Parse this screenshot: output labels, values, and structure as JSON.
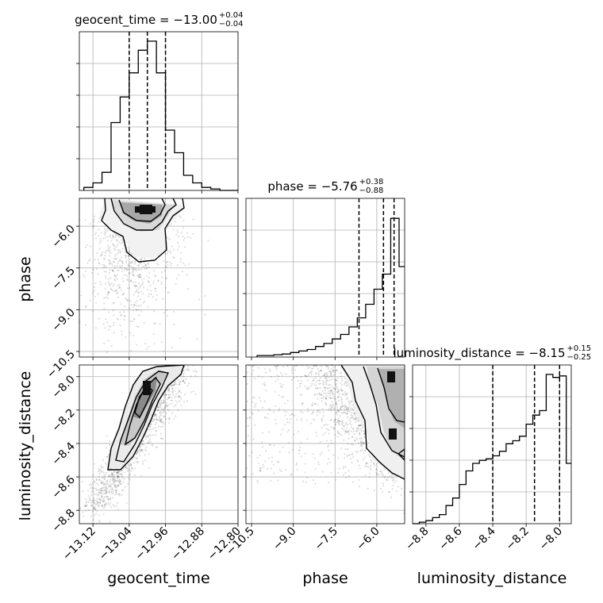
{
  "chart_data": {
    "type": "corner",
    "parameters": [
      "geocent_time",
      "phase",
      "luminosity_distance"
    ],
    "xlabels": [
      "geocent_time",
      "phase",
      "luminosity_distance"
    ],
    "ylabels": [
      "",
      "phase",
      "luminosity_distance"
    ],
    "titles": [
      {
        "name": "geocent_time",
        "median": "−13.00",
        "plus": "+0.04",
        "minus": "−0.04"
      },
      {
        "name": "phase",
        "median": "−5.76",
        "plus": "+0.38",
        "minus": "−0.88"
      },
      {
        "name": "luminosity_distance",
        "median": "−8.15",
        "plus": "+0.15",
        "minus": "−0.25"
      }
    ],
    "ranges": [
      [
        -13.15,
        -12.8
      ],
      [
        -10.7,
        -5.0
      ],
      [
        -8.88,
        -7.93
      ]
    ],
    "ticks": [
      {
        "values": [
          -13.12,
          -13.04,
          -12.96,
          -12.88,
          -12.8
        ],
        "labels": [
          "−13.12",
          "−13.04",
          "−12.96",
          "−12.88",
          "−12.80"
        ]
      },
      {
        "values": [
          -10.5,
          -9.0,
          -7.5,
          -6.0
        ],
        "labels": [
          "−10.5",
          "−9.0",
          "−7.5",
          "−6.0"
        ]
      },
      {
        "values": [
          -8.8,
          -8.6,
          -8.4,
          -8.2,
          -8.0
        ],
        "labels": [
          "−8.8",
          "−8.6",
          "−8.4",
          "−8.2",
          "−8.0"
        ]
      }
    ],
    "quantiles": [
      [
        -13.04,
        -13.0,
        -12.96
      ],
      [
        -6.64,
        -5.76,
        -5.38
      ],
      [
        -8.4,
        -8.15,
        -8.0
      ]
    ],
    "histograms": [
      {
        "edges": [
          -13.14,
          -13.12,
          -13.1,
          -13.08,
          -13.06,
          -13.04,
          -13.02,
          -13.0,
          -12.98,
          -12.96,
          -12.94,
          -12.92,
          -12.9,
          -12.88,
          -12.86,
          -12.84,
          -12.82,
          -12.8
        ],
        "counts": [
          0.02,
          0.05,
          0.12,
          0.45,
          0.62,
          0.78,
          0.93,
          0.99,
          0.78,
          0.4,
          0.25,
          0.1,
          0.05,
          0.02,
          0.01,
          0.0,
          0.0
        ]
      },
      {
        "edges": [
          -10.3,
          -10.0,
          -9.7,
          -9.4,
          -9.1,
          -8.8,
          -8.5,
          -8.2,
          -7.9,
          -7.6,
          -7.3,
          -7.0,
          -6.7,
          -6.4,
          -6.1,
          -5.8,
          -5.5,
          -5.2,
          -5.0
        ],
        "counts": [
          0.01,
          0.01,
          0.015,
          0.02,
          0.03,
          0.04,
          0.05,
          0.07,
          0.09,
          0.12,
          0.15,
          0.2,
          0.26,
          0.35,
          0.45,
          0.55,
          0.92,
          0.6
        ]
      },
      {
        "edges": [
          -8.88,
          -8.84,
          -8.8,
          -8.76,
          -8.72,
          -8.68,
          -8.64,
          -8.6,
          -8.56,
          -8.52,
          -8.48,
          -8.44,
          -8.4,
          -8.36,
          -8.32,
          -8.28,
          -8.24,
          -8.2,
          -8.16,
          -8.12,
          -8.08,
          -8.04,
          -8.0,
          -7.96,
          -7.93
        ],
        "counts": [
          0.0,
          0.01,
          0.02,
          0.04,
          0.06,
          0.12,
          0.17,
          0.26,
          0.35,
          0.4,
          0.42,
          0.43,
          0.45,
          0.48,
          0.53,
          0.55,
          0.58,
          0.66,
          0.72,
          0.75,
          0.99,
          0.97,
          0.98,
          0.4
        ]
      }
    ],
    "grid": true
  }
}
